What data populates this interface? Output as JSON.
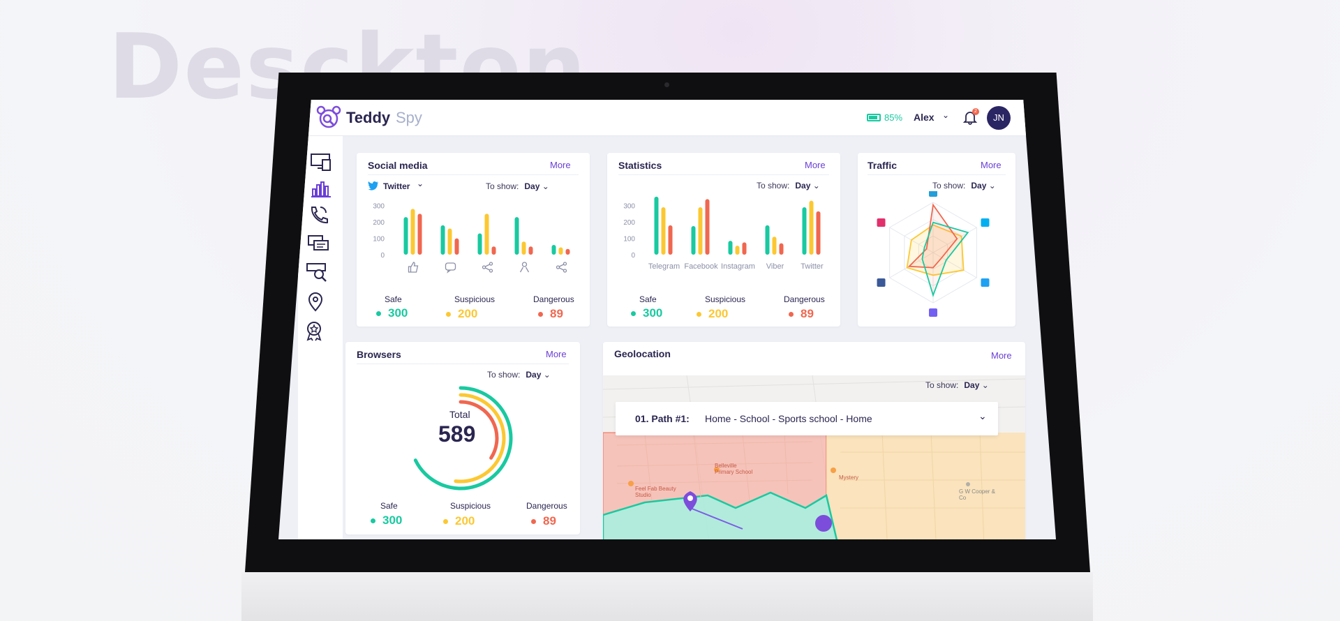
{
  "hero": {
    "title": "Desktop"
  },
  "app": {
    "logo_teddy": "Teddy",
    "logo_spy": "Spy",
    "battery": "85%",
    "user": "Alex",
    "notifications": "2",
    "avatar": "JN"
  },
  "colors": {
    "safe": "#19c9a0",
    "suspicious": "#fcc832",
    "dangerous": "#f0674f",
    "accent": "#6a3fd6"
  },
  "sidebar": {
    "items": [
      {
        "icon": "devices-icon"
      },
      {
        "icon": "statistics-icon"
      },
      {
        "icon": "calls-icon"
      },
      {
        "icon": "messages-icon"
      },
      {
        "icon": "web-search-icon"
      },
      {
        "icon": "location-icon"
      },
      {
        "icon": "rewards-icon"
      }
    ]
  },
  "social": {
    "title": "Social media",
    "more": "More",
    "network": "Twitter",
    "to_show": "To show:",
    "period": "Day",
    "safe_label": "Safe",
    "suspicious_label": "Suspicious",
    "dangerous_label": "Dangerous",
    "safe": "300",
    "suspicious": "200",
    "dangerous": "89"
  },
  "statistics": {
    "title": "Statistics",
    "more": "More",
    "to_show": "To show:",
    "period": "Day",
    "safe_label": "Safe",
    "suspicious_label": "Suspicious",
    "dangerous_label": "Dangerous",
    "safe": "300",
    "suspicious": "200",
    "dangerous": "89"
  },
  "traffic": {
    "title": "Traffic",
    "more": "More",
    "to_show": "To show:",
    "period": "Day"
  },
  "browsers": {
    "title": "Browsers",
    "more": "More",
    "to_show": "To show:",
    "period": "Day",
    "total_label": "Total",
    "total": "589",
    "safe_label": "Safe",
    "suspicious_label": "Suspicious",
    "dangerous_label": "Dangerous",
    "safe": "300",
    "suspicious": "200",
    "dangerous": "89"
  },
  "geolocation": {
    "title": "Geolocation",
    "more": "More",
    "to_show": "To show:",
    "period": "Day",
    "path_label": "01. Path #1:",
    "path_value": "Home - School - Sports school - Home",
    "places": [
      "Belleville Primary School",
      "Feel Fab Beauty Studio",
      "G W Cooper & Co",
      "Mystery"
    ]
  },
  "chart_data": [
    {
      "type": "bar",
      "id": "social",
      "categories": [
        "like-icon",
        "comment-icon",
        "share-icon",
        "user-icon",
        "repost-icon"
      ],
      "ylim": [
        0,
        350
      ],
      "yticks": [
        0,
        100,
        200,
        300
      ],
      "series": [
        {
          "values": [
            230,
            180,
            130,
            230,
            60
          ]
        },
        {
          "values": [
            280,
            160,
            250,
            80,
            45
          ]
        },
        {
          "values": [
            250,
            100,
            50,
            50,
            35
          ]
        }
      ]
    },
    {
      "type": "bar",
      "id": "statistics",
      "categories": [
        "Telegram",
        "Facebook",
        "Instagram",
        "Viber",
        "Twitter"
      ],
      "ylim": [
        0,
        350
      ],
      "yticks": [
        0,
        100,
        200,
        300
      ],
      "series": [
        {
          "values": [
            355,
            175,
            85,
            180,
            290
          ]
        },
        {
          "values": [
            290,
            290,
            55,
            110,
            330
          ]
        },
        {
          "values": [
            180,
            340,
            75,
            70,
            265
          ]
        }
      ]
    },
    {
      "type": "radar",
      "id": "traffic",
      "axes": [
        "telegram",
        "skype",
        "twitter",
        "viber",
        "facebook",
        "instagram"
      ],
      "series": [
        {
          "values": [
            0.95,
            0.55,
            0.2,
            0.3,
            0.55,
            0.15
          ]
        },
        {
          "values": [
            0.55,
            0.65,
            0.7,
            0.45,
            0.6,
            0.5
          ]
        },
        {
          "values": [
            0.6,
            0.8,
            0.3,
            0.85,
            0.25,
            0.2
          ]
        }
      ]
    },
    {
      "type": "donut",
      "id": "browsers",
      "labels": [
        "Safe",
        "Suspicious",
        "Dangerous"
      ],
      "values": [
        300,
        200,
        89
      ]
    }
  ]
}
